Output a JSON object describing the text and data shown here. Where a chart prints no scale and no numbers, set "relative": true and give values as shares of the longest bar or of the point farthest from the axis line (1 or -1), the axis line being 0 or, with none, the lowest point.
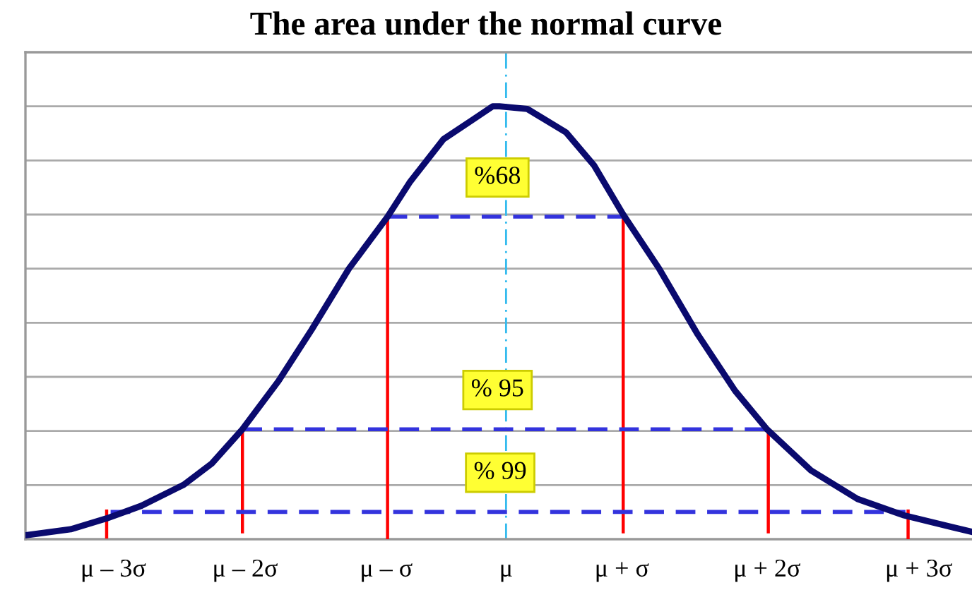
{
  "chart_data": {
    "type": "line",
    "title": "The area under the normal curve",
    "relative": true,
    "grid": "y",
    "xlim": [
      -3.61,
      3.5
    ],
    "xticks": [
      {
        "value": -2.95,
        "label": "μ – 3σ"
      },
      {
        "value": -1.96,
        "label": "μ – 2σ"
      },
      {
        "value": -0.9,
        "label": "μ – σ"
      },
      {
        "value": 0,
        "label": "μ"
      },
      {
        "value": 0.87,
        "label": "μ + σ"
      },
      {
        "value": 1.96,
        "label": "μ + 2σ"
      },
      {
        "value": 3.1,
        "label": "μ + 3σ"
      }
    ],
    "annotations": [
      "%68",
      "% 95",
      "% 99"
    ],
    "ref_lines": [
      {
        "axis": "x",
        "value": 0,
        "color": "#33bbee",
        "line_style": "dashed"
      }
    ],
    "series": [
      {
        "color": "#0a0a6e",
        "x": [
          -3.61,
          -3.27,
          -3.0,
          -2.74,
          -2.42,
          -2.21,
          -1.98,
          -1.71,
          -1.46,
          -1.18,
          -0.89,
          -0.72,
          -0.47,
          -0.26,
          -0.1,
          -0.05,
          0.16,
          0.45,
          0.66,
          0.88,
          1.15,
          1.44,
          1.72,
          1.96,
          2.29,
          2.64,
          2.99,
          3.35,
          3.5
        ],
        "values": [
          0.009,
          0.023,
          0.048,
          0.077,
          0.126,
          0.175,
          0.254,
          0.365,
          0.484,
          0.625,
          0.745,
          0.826,
          0.924,
          0.967,
          1.0,
          1.0,
          0.994,
          0.94,
          0.864,
          0.75,
          0.625,
          0.473,
          0.343,
          0.254,
          0.159,
          0.093,
          0.055,
          0.028,
          0.017
        ]
      },
      {
        "color": "#ff0000",
        "x": [
          -3.0,
          -3.0
        ],
        "values": [
          0.005,
          0.065
        ]
      },
      {
        "color": "#ff0000",
        "x": [
          -1.98,
          -1.98
        ],
        "values": [
          0.017,
          0.254
        ]
      },
      {
        "color": "#ff0000",
        "x": [
          -0.89,
          -0.89
        ],
        "values": [
          0,
          0.745
        ]
      },
      {
        "color": "#ff0000",
        "x": [
          0.88,
          0.88
        ],
        "values": [
          0.017,
          0.75
        ]
      },
      {
        "color": "#ff0000",
        "x": [
          1.97,
          1.97
        ],
        "values": [
          0.017,
          0.254
        ]
      },
      {
        "color": "#ff0000",
        "x": [
          3.02,
          3.02
        ],
        "values": [
          0,
          0.065
        ]
      },
      {
        "color": "#3333dd",
        "line_style": "dashed",
        "x": [
          -0.89,
          0.88
        ],
        "values": [
          0.745,
          0.745
        ]
      },
      {
        "color": "#3333dd",
        "line_style": "dashed",
        "x": [
          -1.98,
          1.97
        ],
        "values": [
          0.254,
          0.254
        ]
      },
      {
        "color": "#3333dd",
        "line_style": "dashed",
        "x": [
          -2.97,
          3.0
        ],
        "values": [
          0.063,
          0.063
        ]
      }
    ]
  }
}
